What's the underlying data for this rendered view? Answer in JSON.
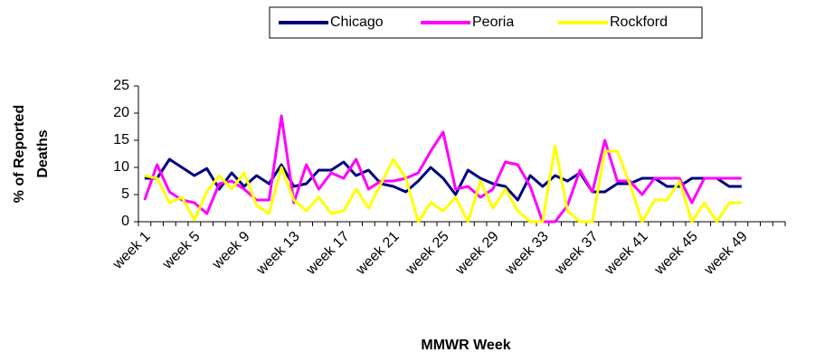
{
  "chart_data": {
    "type": "line",
    "xlabel": "MMWR Week",
    "ylabel_lines": [
      "% of Reported",
      "Deaths"
    ],
    "categories": [
      "week 1",
      null,
      null,
      null,
      "week 5",
      null,
      null,
      null,
      "week 9",
      null,
      null,
      null,
      "week 13",
      null,
      null,
      null,
      "week 17",
      null,
      null,
      null,
      "week 21",
      null,
      null,
      null,
      "week 25",
      null,
      null,
      null,
      "week 29",
      null,
      null,
      null,
      "week 33",
      null,
      null,
      null,
      "week 37",
      null,
      null,
      null,
      "week 41",
      null,
      null,
      null,
      "week 45",
      null,
      null,
      null,
      "week 49",
      null,
      null,
      null
    ],
    "series": [
      {
        "name": "Chicago",
        "color": "#000080",
        "values": [
          8,
          8,
          11.5,
          10,
          8.5,
          9.8,
          6,
          9,
          6.5,
          8.5,
          7,
          10.5,
          6.5,
          7,
          9.5,
          9.5,
          11,
          8.5,
          9.5,
          7,
          6.5,
          5.5,
          7.5,
          10,
          8,
          5,
          9.5,
          8,
          7,
          6.5,
          4,
          8.5,
          6.5,
          8.5,
          7.5,
          9,
          5.5,
          5.5,
          7,
          7,
          8,
          8,
          6.5,
          6.5,
          8,
          8,
          8,
          6.5,
          6.5,
          null,
          null,
          null
        ]
      },
      {
        "name": "Peoria",
        "color": "#ff00ff",
        "values": [
          4,
          10.5,
          5.5,
          4,
          3.5,
          1.5,
          7,
          7.5,
          6,
          4,
          4,
          19.5,
          3.5,
          10.5,
          6,
          9,
          8,
          11.5,
          6,
          7.5,
          7.5,
          8,
          9,
          13,
          16.5,
          6,
          6.5,
          4.5,
          6,
          11,
          10.5,
          6.5,
          0,
          0,
          3,
          9.5,
          5.5,
          15,
          7.5,
          7.5,
          5,
          8,
          8,
          8,
          3.5,
          8,
          8,
          8,
          8,
          null,
          null,
          null
        ]
      },
      {
        "name": "Rockford",
        "color": "#ffff00",
        "values": [
          8.5,
          8,
          3.5,
          4.5,
          0.3,
          5.5,
          8.5,
          6,
          9,
          3,
          1.5,
          10,
          4,
          2,
          4.5,
          1.5,
          2,
          6,
          2.5,
          7,
          11.5,
          8,
          0,
          3.5,
          2,
          4.5,
          0,
          7.5,
          2.5,
          6,
          2,
          0,
          0,
          14,
          2,
          0,
          0,
          13,
          13,
          7,
          0,
          4,
          4,
          7.5,
          0,
          3.5,
          0,
          3.5,
          3.5,
          null,
          null,
          null
        ]
      }
    ],
    "ylim": [
      0,
      25
    ],
    "yticks": [
      0,
      5,
      10,
      15,
      20,
      25
    ],
    "legend": "top"
  }
}
